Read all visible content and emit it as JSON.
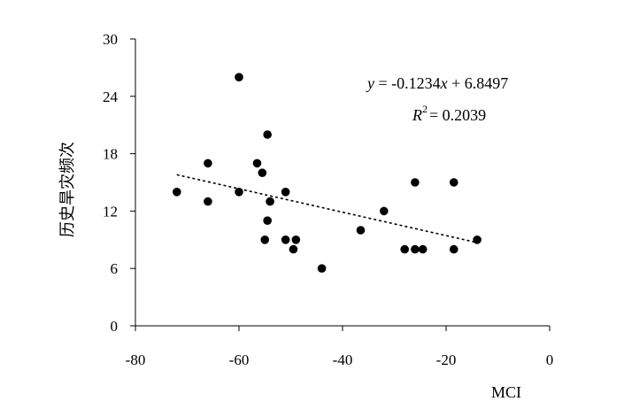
{
  "chart_data": {
    "type": "scatter",
    "xlabel": "MCI",
    "ylabel": "历史旱灾频次",
    "xlim": [
      -80,
      0
    ],
    "ylim": [
      0,
      30
    ],
    "xticks": [
      -80,
      -60,
      -40,
      -20,
      0
    ],
    "yticks": [
      0,
      6,
      12,
      18,
      24,
      30
    ],
    "x_tick_labels": [
      "-80",
      "-60",
      "-40",
      "-20",
      "0"
    ],
    "y_tick_labels": [
      "0",
      "6",
      "12",
      "18",
      "24",
      "30"
    ],
    "grid": false,
    "series": [
      {
        "points": [
          {
            "x": -72,
            "y": 14
          },
          {
            "x": -66,
            "y": 17
          },
          {
            "x": -66,
            "y": 13
          },
          {
            "x": -60,
            "y": 26
          },
          {
            "x": -60,
            "y": 14
          },
          {
            "x": -56.5,
            "y": 17
          },
          {
            "x": -55.5,
            "y": 16
          },
          {
            "x": -54.5,
            "y": 20
          },
          {
            "x": -54,
            "y": 13
          },
          {
            "x": -54.5,
            "y": 11
          },
          {
            "x": -55,
            "y": 9
          },
          {
            "x": -51,
            "y": 14
          },
          {
            "x": -51,
            "y": 9
          },
          {
            "x": -49,
            "y": 9
          },
          {
            "x": -49.5,
            "y": 8
          },
          {
            "x": -44,
            "y": 6
          },
          {
            "x": -36.5,
            "y": 10
          },
          {
            "x": -32,
            "y": 12
          },
          {
            "x": -28,
            "y": 8
          },
          {
            "x": -26,
            "y": 8
          },
          {
            "x": -26,
            "y": 15
          },
          {
            "x": -24.5,
            "y": 8
          },
          {
            "x": -18.5,
            "y": 15
          },
          {
            "x": -18.5,
            "y": 8
          },
          {
            "x": -14,
            "y": 9
          }
        ]
      }
    ],
    "trendline": {
      "type": "linear",
      "style": "dotted",
      "slope": -0.1234,
      "intercept": 6.8497,
      "x_range": [
        -72,
        -14
      ],
      "y_range": [
        15.8,
        8.7
      ]
    },
    "equation": {
      "y_var": "y",
      "equation_rest": " = -0.1234",
      "x_var": "x",
      "equation_tail": " + 6.8497",
      "r_var": "R",
      "r_exp": "2",
      "r_value": "= 0.2039"
    }
  }
}
